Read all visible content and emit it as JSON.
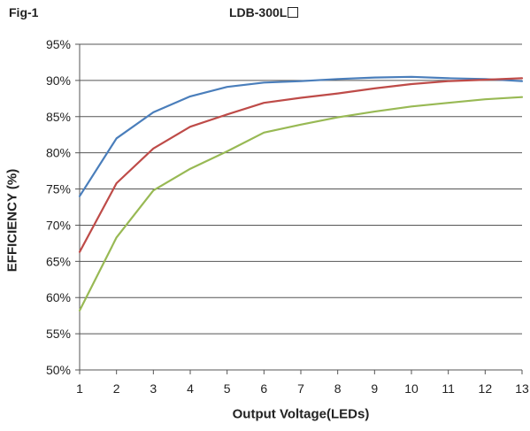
{
  "fig_label": "Fig-1",
  "chart_data": {
    "type": "line",
    "title": "LDB-300L",
    "xlabel": "Output Voltage(LEDs)",
    "ylabel": "EFFICIENCY (%)",
    "x": [
      1,
      2,
      3,
      4,
      5,
      6,
      7,
      8,
      9,
      10,
      11,
      12,
      13
    ],
    "xlim": [
      1,
      13
    ],
    "ylim": [
      50,
      95
    ],
    "ytick_step": 5,
    "ytick_suffix": "%",
    "grid": "horizontal",
    "legend": "none",
    "series": [
      {
        "color": "#4a7ebb",
        "values": [
          74.0,
          82.0,
          85.6,
          87.8,
          89.1,
          89.7,
          89.9,
          90.2,
          90.4,
          90.5,
          90.3,
          90.2,
          89.9
        ]
      },
      {
        "color": "#be4b48",
        "values": [
          66.3,
          75.8,
          80.6,
          83.6,
          85.3,
          86.9,
          87.6,
          88.2,
          88.9,
          89.5,
          89.9,
          90.1,
          90.3
        ]
      },
      {
        "color": "#98b954",
        "values": [
          58.2,
          68.3,
          74.8,
          77.8,
          80.2,
          82.8,
          83.9,
          84.9,
          85.7,
          86.4,
          86.9,
          87.4,
          87.7
        ]
      }
    ]
  }
}
